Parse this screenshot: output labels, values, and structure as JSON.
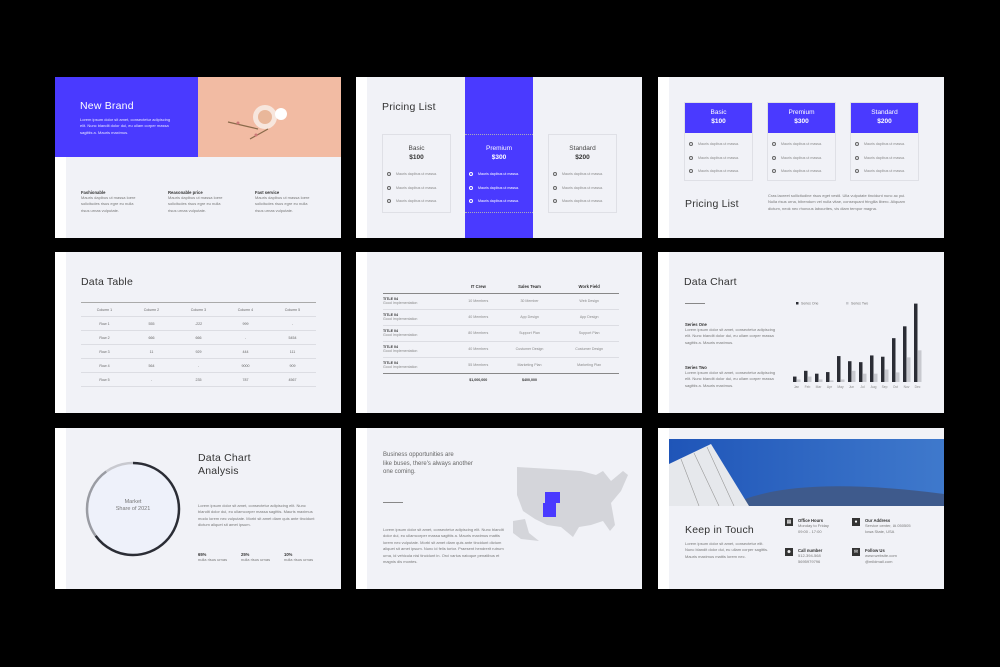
{
  "colors": {
    "accent": "#4a3aff",
    "dark": "#2b2d35",
    "light_gray": "#c8c9cf",
    "background": "#000000",
    "slide_bg": "#f1f2f7"
  },
  "slide1": {
    "title": "New Brand",
    "text": "Lorem ipsum dolor sit amet, consectetur adipiscing elit. Nunc blandit dolor dui, eu ullam corper massa sagittis a. Mauris maximus.",
    "features": [
      {
        "title": "Fashionable",
        "text": "Mauris dapibus ut massa loere solicitudes risus egre eu nulla risus urnas vulputate."
      },
      {
        "title": "Reasonable price",
        "text": "Mauris dapibus ut massa loere solicitudes risus egre eu nulla risus urnas vulputate."
      },
      {
        "title": "Fast service",
        "text": "Mauris dapibus ut massa loere solicitudes risus egre eu nulla risus urnas vulputate."
      }
    ]
  },
  "slide2": {
    "title": "Pricing List",
    "plans": [
      {
        "name": "Basic",
        "price": "$100"
      },
      {
        "name": "Premium",
        "price": "$300"
      },
      {
        "name": "Standard",
        "price": "$200"
      }
    ],
    "item": "Mauris dapibus ut massa."
  },
  "slide3": {
    "title": "Pricing List",
    "plans": [
      {
        "name": "Basic",
        "price": "$100"
      },
      {
        "name": "Premium",
        "price": "$300"
      },
      {
        "name": "Standard",
        "price": "$200"
      }
    ],
    "item": "Mauris dapibus ut massa.",
    "text": "Cras laoreet sollicitudine risus eget vestil. Ulla vulputate tincidunt nunc ac pui. Nulla risus urna, bibendum vel nulla vitae, consequant fringilla libero. Aliquam dictum, neok nec rhoncus labourites, vis diam tempor magna."
  },
  "slide4": {
    "title": "Data Table",
    "headers": [
      "Column 1",
      "Column 2",
      "Column 3",
      "Column 4",
      "Column 5"
    ],
    "rows": [
      [
        "Row 1",
        "555",
        "-222",
        "999",
        "-"
      ],
      [
        "Row 2",
        "666",
        "666",
        "-",
        "5454"
      ],
      [
        "Row 3",
        "11",
        "929",
        "444",
        "111"
      ],
      [
        "Row 4",
        "564",
        "-",
        "9000",
        "909"
      ],
      [
        "Row 5",
        "-",
        "235",
        "787",
        "4567"
      ]
    ]
  },
  "slide5": {
    "headers": [
      "",
      "IT Crew",
      "Sales Team",
      "Work Field"
    ],
    "rows": [
      {
        "title": "TITLE 04",
        "sub": "Good Implementation",
        "cells": [
          "10 Members",
          "30 Member",
          "Web Design"
        ]
      },
      {
        "title": "TITLE 04",
        "sub": "Good Implementation",
        "cells": [
          "40 Members",
          "App Design",
          "App Design"
        ]
      },
      {
        "title": "TITLE 04",
        "sub": "Good Implementation",
        "cells": [
          "80 Members",
          "Support Plan",
          "Support Plan"
        ]
      },
      {
        "title": "TITLE 04",
        "sub": "Good Implementation",
        "cells": [
          "40 Members",
          "Custumer Design",
          "Custumer Design"
        ]
      },
      {
        "title": "TITLE 04",
        "sub": "Good Implementation",
        "cells": [
          "55 Members",
          "Marketing Plan",
          "Marketing Plan"
        ]
      }
    ],
    "totals": [
      "",
      "$1,000,000",
      "$400,000",
      ""
    ]
  },
  "slide6": {
    "title": "Data Chart",
    "series_one_title": "Series One",
    "series_one_text": "Lorem ipsum dolor sit amet, consectetur adipiscing elit. Nunc blandit dolor dui, eu ullam corper massa sagittis a. Mauris maximus.",
    "series_two_title": "Series Two",
    "series_two_text": "Lorem ipsum dolor sit amet, consectetur adipiscing elit. Nunc blandit dolor dui, eu ullam corper massa sagittis a. Mauris maximus."
  },
  "chart_data": {
    "type": "bar",
    "categories": [
      "Jan",
      "Feb",
      "Mar",
      "Apr",
      "May",
      "Jun",
      "Jul",
      "Aug",
      "Sep",
      "Oct",
      "Nov",
      "Dec"
    ],
    "series": [
      {
        "name": "Series One",
        "color": "#2b2d35",
        "values": [
          17,
          35,
          26,
          31,
          81,
          65,
          62,
          83,
          79,
          137,
          174,
          245
        ]
      },
      {
        "name": "Series Two",
        "color": "#c8c9cf",
        "values": [
          8,
          17,
          8,
          5,
          8,
          35,
          26,
          26,
          39,
          30,
          77,
          99
        ]
      }
    ],
    "ylim": [
      0,
      250
    ],
    "legend": "top",
    "grid": false
  },
  "slide7": {
    "title_line1": "Data Chart",
    "title_line2": "Analysis",
    "ring_line1": "Market",
    "ring_line2": "Share of 2021",
    "text": "Lorem ipsum dolor sit amet, consectetur adipiscing elit. Nunc blandit dolor dui, eu ullamcorper massa sagittis. Mauris maximus modo lorem nec vulputate. Morbi sit amet diam quis ante tincidunt dictum aliquet sit amet ipsum.",
    "stats": [
      {
        "value": "65%",
        "label": "nulla risus urnas",
        "share": 65
      },
      {
        "value": "25%",
        "label": "nulla risus urnas",
        "share": 25
      },
      {
        "value": "10%",
        "label": "nulla risus urnas",
        "share": 10
      }
    ]
  },
  "slide8": {
    "quote_line1": "Business opportunities are",
    "quote_line2": "like buses, there's always another",
    "quote_line3": "one coming.",
    "text": "Lorem ipsum dolor sit amet, consectetur adipiscing elit. Nunc blandit dolor dui, eu ullamcorper massa sagittis a. Mauris maximus mattis lorem nec vulputate. Morbi sit amet diam quis ante tincidunt dictum aliquet sit amet ipsum. Nunc id felis tortor. Praesent hendrerit rutrum urna, id vehicula nisl tincidunt in. Orci varius natoque penatibus et magnis dis montes."
  },
  "slide9": {
    "title": "Keep in Touch",
    "text": "Lorem ipsum dolor sit amet, consectetur elit. Nunc blandit dolor dui, eu ullam corper sagittis. Mauris maximus mattis lorem nec.",
    "contacts": [
      {
        "icon": "calendar-icon",
        "title": "Office Hours",
        "line1": "Monday to Friday",
        "line2": "09:00 - 17:00"
      },
      {
        "icon": "location-pin-icon",
        "title": "Our Address",
        "line1": "Service center, IA 050505",
        "line2": "Iowa State, USA"
      },
      {
        "icon": "user-icon",
        "title": "Call number",
        "line1": "512-394-568",
        "line2": "5695979796"
      },
      {
        "icon": "envelope-icon",
        "title": "Follow Us",
        "line1": "www.website.com",
        "line2": "@mildmail.com"
      }
    ]
  }
}
